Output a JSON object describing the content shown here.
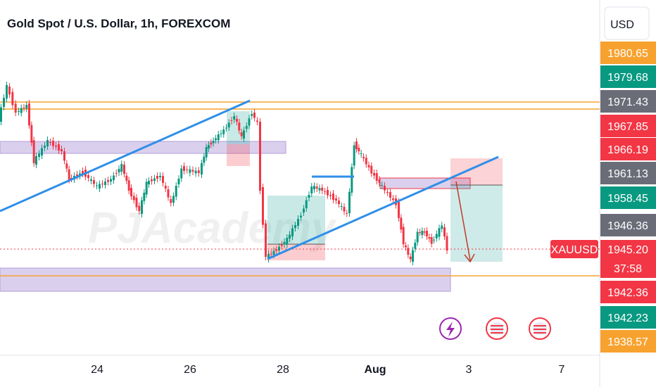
{
  "header": {
    "title": "Gold Spot / U.S. Dollar, 1h, FOREXCOM",
    "currency": "USD"
  },
  "watermark": "PJAcademy",
  "price_scale": {
    "labels": [
      {
        "text": "1980.65",
        "color": "#f7a22f"
      },
      {
        "text": "1979.68",
        "color": "#089981"
      },
      {
        "text": "1971.43",
        "color": "#6a6d78"
      },
      {
        "text": "1967.85",
        "color": "#f23645"
      },
      {
        "text": "1966.19",
        "color": "#f23645"
      },
      {
        "text": "1961.13",
        "color": "#6a6d78"
      },
      {
        "text": "1958.45",
        "color": "#089981"
      },
      {
        "text": "1946.36",
        "color": "#6a6d78"
      },
      {
        "text": "1945.20",
        "color": "#f23645"
      },
      {
        "text": "37:58",
        "color": "#f23645"
      },
      {
        "text": "1942.36",
        "color": "#f23645"
      },
      {
        "text": "1942.23",
        "color": "#089981"
      },
      {
        "text": "1938.57",
        "color": "#f7a22f"
      }
    ],
    "symbol_tag": "XAUUSD"
  },
  "time_axis": {
    "labels": [
      "24",
      "26",
      "28",
      "Aug",
      "3",
      "7"
    ]
  }
}
